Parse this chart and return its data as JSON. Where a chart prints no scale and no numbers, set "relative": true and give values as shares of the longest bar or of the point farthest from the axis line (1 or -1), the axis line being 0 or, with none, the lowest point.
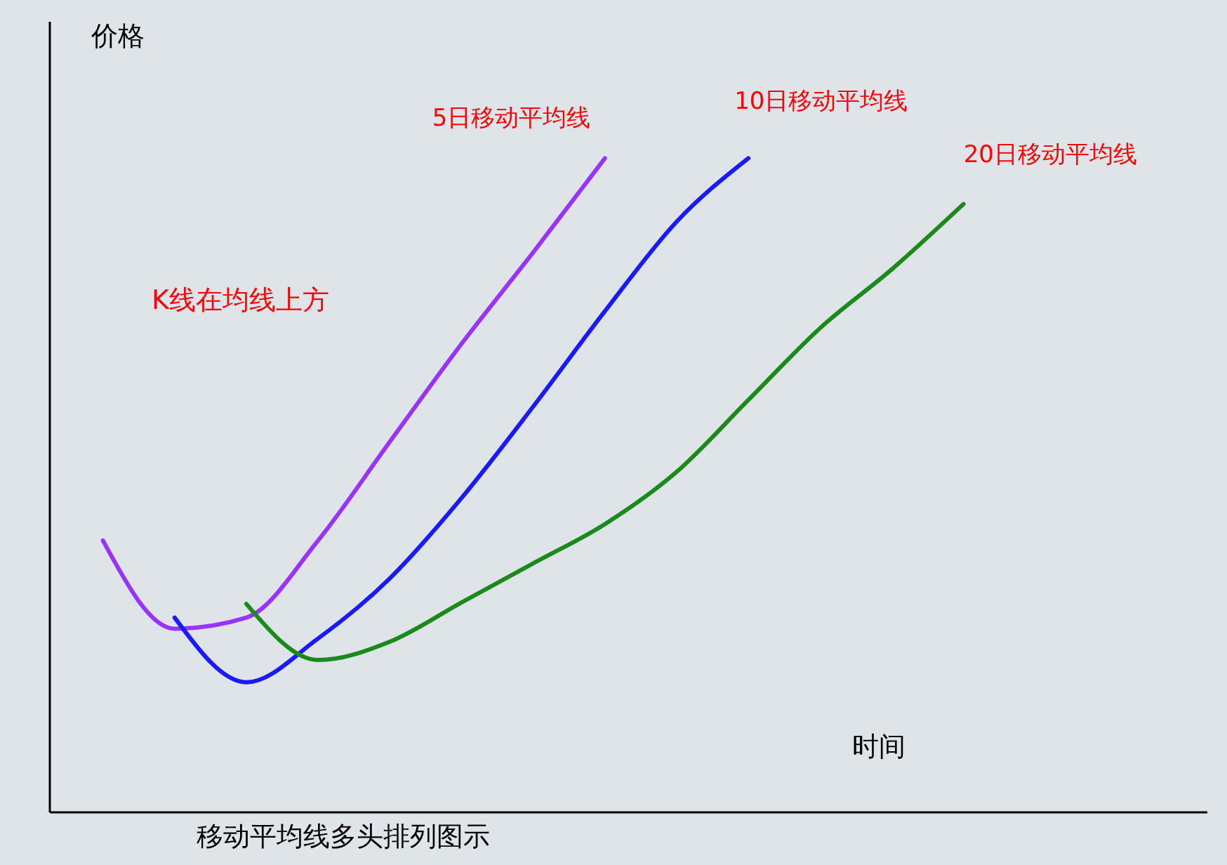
{
  "chart_data": {
    "type": "line",
    "title": "移动平均线多头排列图示",
    "xlabel": "时间",
    "ylabel": "价格",
    "relative": true,
    "categories": [
      null,
      null,
      null,
      null,
      null,
      null,
      null,
      null,
      null,
      null,
      null,
      null,
      null
    ],
    "marker": "none",
    "line_style": "solid",
    "grid": false,
    "legend": false,
    "annotations": [
      "K线在均线上方"
    ],
    "series": [
      {
        "name": "5日移动平均线",
        "color": "#9933ff",
        "values": [
          0.415,
          0.28,
          0.297,
          0.415,
          0.566,
          0.716,
          0.856,
          1.0,
          null,
          null,
          null,
          null,
          null
        ]
      },
      {
        "name": "10日移动平均线",
        "color": "#1a1aff",
        "values": [
          null,
          0.297,
          0.198,
          0.265,
          0.357,
          0.48,
          0.62,
          0.766,
          0.903,
          1.0,
          null,
          null,
          null
        ]
      },
      {
        "name": "20日移动平均线",
        "color": "#1a8a1a",
        "values": [
          null,
          null,
          0.318,
          0.232,
          0.26,
          0.32,
          0.38,
          0.44,
          0.52,
          0.63,
          0.74,
          0.83,
          0.93
        ]
      }
    ]
  }
}
